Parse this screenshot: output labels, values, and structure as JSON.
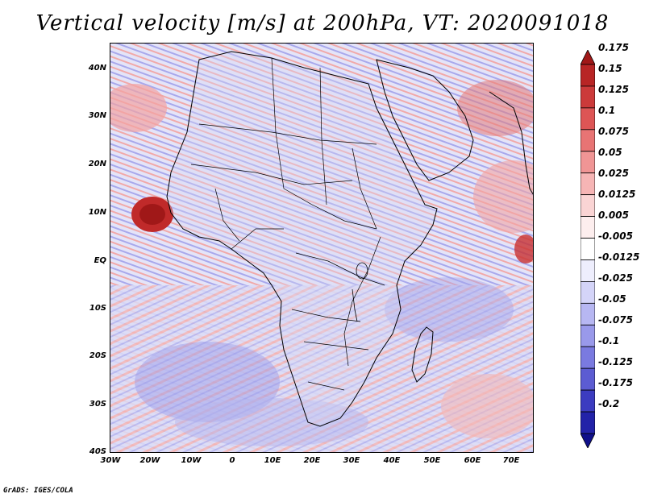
{
  "title": "Vertical velocity [m/s] at 200hPa, VT: 2020091018",
  "credit": "GrADS: IGES/COLA",
  "y_ticks": [
    "40N",
    "30N",
    "20N",
    "10N",
    "EQ",
    "10S",
    "20S",
    "30S",
    "40S"
  ],
  "x_ticks": [
    "30W",
    "20W",
    "10W",
    "0",
    "10E",
    "20E",
    "30E",
    "40E",
    "50E",
    "60E",
    "70E"
  ],
  "colorbar": {
    "labels": [
      "0.175",
      "0.15",
      "0.125",
      "0.1",
      "0.075",
      "0.05",
      "0.025",
      "0.0125",
      "0.005",
      "-0.005",
      "-0.0125",
      "-0.025",
      "-0.05",
      "-0.075",
      "-0.1",
      "-0.125",
      "-0.175",
      "-0.2"
    ],
    "colors": [
      "#a01818",
      "#b82525",
      "#cc3a3a",
      "#dd5555",
      "#e87474",
      "#f09595",
      "#f6b5b5",
      "#fad4d4",
      "#fdeeee",
      "#ffffff",
      "#eeeefd",
      "#d4d4f8",
      "#b7b7f2",
      "#9999ea",
      "#7a7ae0",
      "#5c5cd2",
      "#3c3cc0",
      "#2222a8",
      "#10108a"
    ]
  },
  "features": {
    "land_outline_color": "#000000",
    "warm_color": "#f2a3a3",
    "cool_color": "#a9a9ee"
  }
}
